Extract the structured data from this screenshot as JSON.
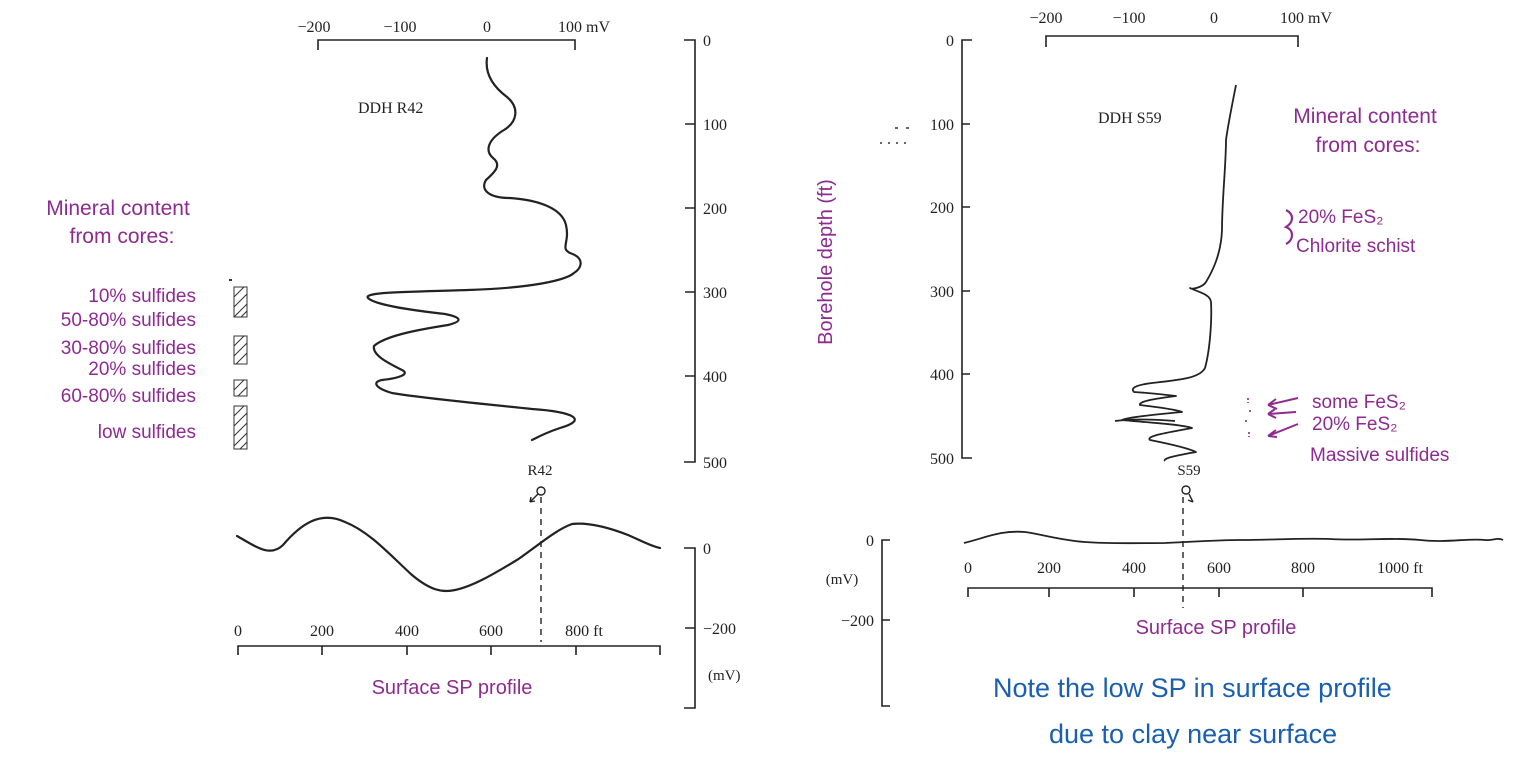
{
  "left": {
    "mv_axis": {
      "ticks": [
        "−200",
        "−100",
        "0",
        "100 mV"
      ]
    },
    "hole_name": "DDH R42",
    "depth_axis": {
      "ticks": [
        "0",
        "100",
        "200",
        "300",
        "400",
        "500"
      ]
    },
    "mineral_heading": [
      "Mineral content",
      "from cores:"
    ],
    "core_zones": [
      "10% sulfides",
      "50-80% sulfides",
      "30-80% sulfides",
      "20% sulfides",
      "60-80% sulfides",
      "low sulfides"
    ],
    "surface_marker": "R42",
    "surface_distance_ticks": [
      "0",
      "200",
      "400",
      "600",
      "800 ft"
    ],
    "surface_mv_ticks": [
      "0",
      "−200",
      "(mV)"
    ],
    "surface_caption": "Surface SP profile"
  },
  "right": {
    "mv_axis": {
      "ticks": [
        "−200",
        "−100",
        "0",
        "100 mV"
      ]
    },
    "hole_name": "DDH S59",
    "depth_axis": {
      "ticks": [
        "0",
        "100",
        "200",
        "300",
        "400",
        "500"
      ]
    },
    "depth_axis_title": "Borehole depth (ft)",
    "mineral_heading": [
      "Mineral content",
      "from cores:"
    ],
    "upper_zones": [
      "20% FeS₂",
      "Chlorite schist"
    ],
    "lower_zones": [
      "some FeS₂",
      "20% FeS₂",
      "Massive sulfides"
    ],
    "surface_marker": "S59",
    "surface_mv_ticks": [
      "0",
      "(mV)",
      "−200"
    ],
    "surface_distance_ticks": [
      "0",
      "200",
      "400",
      "600",
      "800",
      "1000 ft"
    ],
    "surface_caption": "Surface SP profile"
  },
  "note": [
    "Note the low SP in surface profile",
    "due to clay near surface"
  ],
  "colors": {
    "annotation": "#8e2b91",
    "note": "#1b5fb0",
    "ink": "#222222"
  }
}
